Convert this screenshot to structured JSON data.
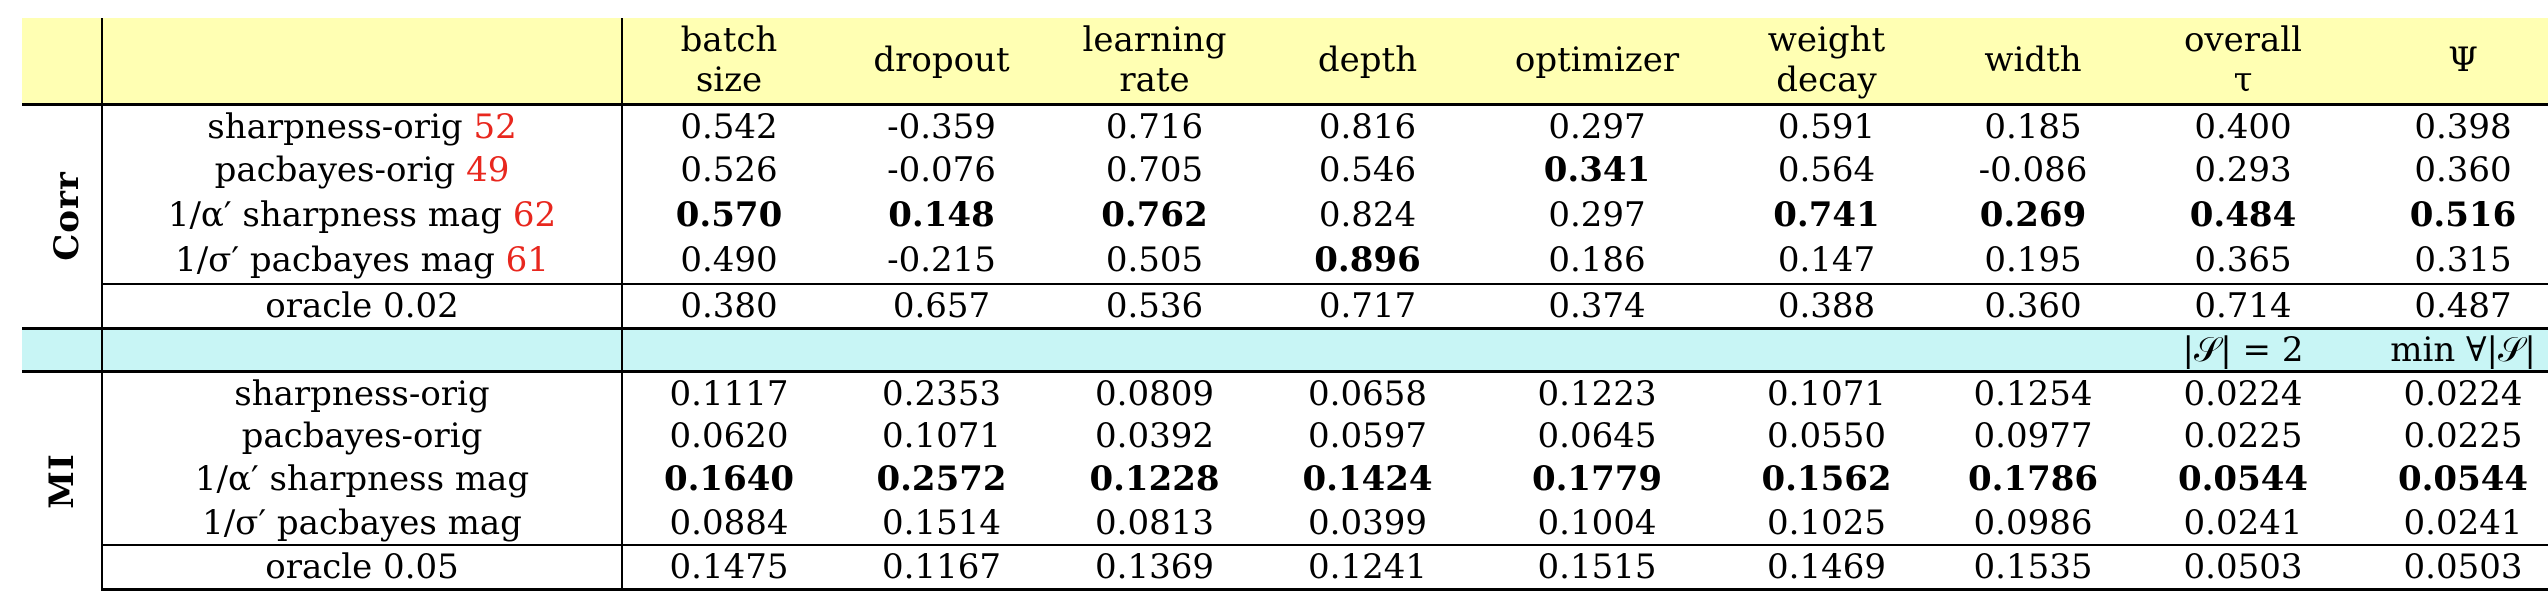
{
  "header": {
    "columns": [
      [
        "batch",
        "size"
      ],
      [
        "dropout"
      ],
      [
        "learning",
        "rate"
      ],
      [
        "depth"
      ],
      [
        "optimizer"
      ],
      [
        "weight",
        "decay"
      ],
      [
        "width"
      ],
      [
        "overall",
        "τ"
      ],
      [
        "Ψ"
      ]
    ]
  },
  "corr": {
    "group_label": "Corr",
    "rows": [
      {
        "name": "sharpness-orig",
        "ref": "52",
        "values": [
          "0.542",
          "-0.359",
          "0.716",
          "0.816",
          "0.297",
          "0.591",
          "0.185",
          "0.400",
          "0.398"
        ],
        "bold": []
      },
      {
        "name": "pacbayes-orig",
        "ref": "49",
        "values": [
          "0.526",
          "-0.076",
          "0.705",
          "0.546",
          "0.341",
          "0.564",
          "-0.086",
          "0.293",
          "0.360"
        ],
        "bold": [
          4
        ]
      },
      {
        "name": "1/α′ sharpness mag",
        "ref": "62",
        "values": [
          "0.570",
          "0.148",
          "0.762",
          "0.824",
          "0.297",
          "0.741",
          "0.269",
          "0.484",
          "0.516"
        ],
        "bold": [
          0,
          1,
          2,
          5,
          6,
          7,
          8
        ]
      },
      {
        "name": "1/σ′ pacbayes mag",
        "ref": "61",
        "values": [
          "0.490",
          "-0.215",
          "0.505",
          "0.896",
          "0.186",
          "0.147",
          "0.195",
          "0.365",
          "0.315"
        ],
        "bold": [
          3
        ]
      }
    ],
    "oracle": {
      "name": "oracle 0.02",
      "values": [
        "0.380",
        "0.657",
        "0.536",
        "0.717",
        "0.374",
        "0.388",
        "0.360",
        "0.714",
        "0.487"
      ]
    }
  },
  "subheader": {
    "col8": "|𝒮| = 2",
    "col9": "min ∀|𝒮|"
  },
  "mi": {
    "group_label": "MI",
    "rows": [
      {
        "name": "sharpness-orig",
        "values": [
          "0.1117",
          "0.2353",
          "0.0809",
          "0.0658",
          "0.1223",
          "0.1071",
          "0.1254",
          "0.0224",
          "0.0224"
        ],
        "bold": []
      },
      {
        "name": "pacbayes-orig",
        "values": [
          "0.0620",
          "0.1071",
          "0.0392",
          "0.0597",
          "0.0645",
          "0.0550",
          "0.0977",
          "0.0225",
          "0.0225"
        ],
        "bold": []
      },
      {
        "name": "1/α′ sharpness mag",
        "values": [
          "0.1640",
          "0.2572",
          "0.1228",
          "0.1424",
          "0.1779",
          "0.1562",
          "0.1786",
          "0.0544",
          "0.0544"
        ],
        "bold": [
          0,
          1,
          2,
          3,
          4,
          5,
          6,
          7,
          8
        ]
      },
      {
        "name": "1/σ′ pacbayes mag",
        "values": [
          "0.0884",
          "0.1514",
          "0.0813",
          "0.0399",
          "0.1004",
          "0.1025",
          "0.0986",
          "0.0241",
          "0.0241"
        ],
        "bold": []
      }
    ],
    "oracle": {
      "name": "oracle 0.05",
      "values": [
        "0.1475",
        "0.1167",
        "0.1369",
        "0.1241",
        "0.1515",
        "0.1469",
        "0.1535",
        "0.0503",
        "0.0503"
      ]
    }
  },
  "colors": {
    "header_bg": "#ffffb3",
    "subheader_bg": "#c8f5f5",
    "ref": "#e8271e"
  }
}
